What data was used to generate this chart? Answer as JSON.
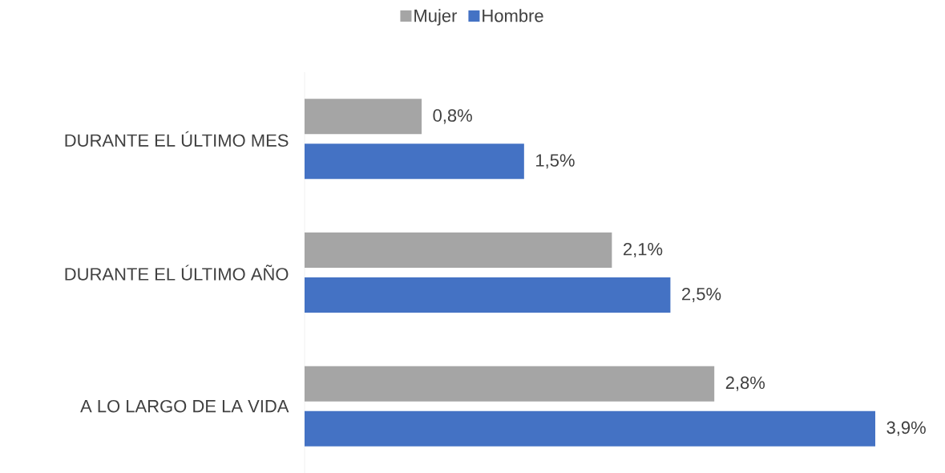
{
  "chart_data": {
    "type": "bar",
    "orientation": "horizontal",
    "tick_labels": "y",
    "categories": [
      "DURANTE EL ÚLTIMO MES",
      "DURANTE EL ÚLTIMO AÑO",
      "A LO LARGO DE LA VIDA"
    ],
    "series": [
      {
        "name": "Mujer",
        "color": "#a5a5a5",
        "values": [
          0.8,
          2.1,
          2.8
        ],
        "value_labels": [
          "0,8%",
          "2,1%",
          "2,8%"
        ]
      },
      {
        "name": "Hombre",
        "color": "#4472c4",
        "values": [
          1.5,
          2.5,
          3.9
        ],
        "value_labels": [
          "1,5%",
          "2,5%",
          "3,9%"
        ]
      }
    ],
    "legend": "top",
    "grid": false
  }
}
